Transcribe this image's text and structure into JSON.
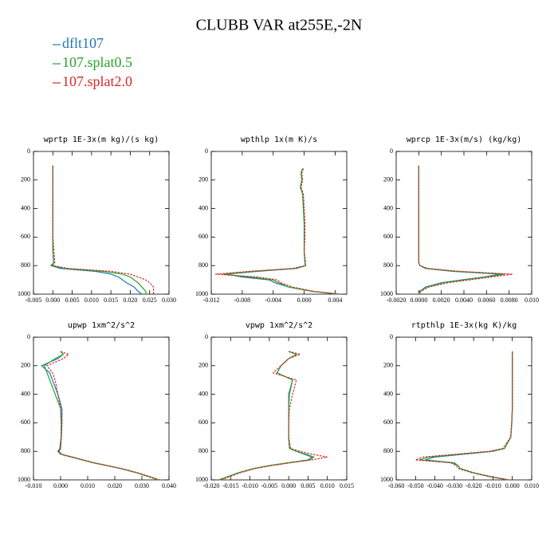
{
  "title": "CLUBB VAR at255E,-2N",
  "legend": [
    {
      "name": "dflt107",
      "color": "#1f77b4",
      "dash": false
    },
    {
      "name": "107.splat0.5",
      "color": "#2ca02c",
      "dash": false
    },
    {
      "name": "107.splat2.0",
      "color": "#d62728",
      "dash": true
    }
  ],
  "chart_data": [
    {
      "type": "line",
      "title": "wprtp  1E-3x(m kg)/(s kg)",
      "y": [
        100,
        150,
        200,
        250,
        300,
        400,
        500,
        600,
        700,
        780,
        800,
        820,
        840,
        860,
        880,
        900,
        920,
        950,
        980,
        1000
      ],
      "xlim": [
        -0.005,
        0.03
      ],
      "ylim": [
        0,
        1000
      ],
      "y_inverted": true,
      "xticks": [
        {
          "value": -0.005,
          "label": "-0.005"
        },
        {
          "value": 0,
          "label": "0.000"
        },
        {
          "value": 0.005,
          "label": "0.005"
        },
        {
          "value": 0.01,
          "label": "0.010"
        },
        {
          "value": 0.015,
          "label": "0.015"
        },
        {
          "value": 0.02,
          "label": "0.020"
        },
        {
          "value": 0.025,
          "label": "0.025"
        },
        {
          "value": 0.03,
          "label": "0.030"
        }
      ],
      "yticks": [
        0,
        200,
        400,
        600,
        800,
        1000
      ],
      "series": [
        {
          "values": [
            0,
            0,
            0,
            0,
            0,
            0,
            0,
            0,
            0,
            0.0002,
            -0.0005,
            0.002,
            0.011,
            0.015,
            0.017,
            0.018,
            0.019,
            0.021,
            0.022,
            0.023
          ]
        },
        {
          "values": [
            0,
            0,
            0,
            0,
            0,
            0,
            0,
            0,
            0,
            0.0002,
            -0.0003,
            0.003,
            0.013,
            0.018,
            0.02,
            0.021,
            0.022,
            0.023,
            0.024,
            0.024
          ]
        },
        {
          "values": [
            0,
            0,
            0,
            0,
            0,
            0,
            0,
            0,
            0.0003,
            0.0005,
            0,
            0.004,
            0.015,
            0.02,
            0.022,
            0.024,
            0.025,
            0.026,
            0.026,
            0.026
          ]
        }
      ]
    },
    {
      "type": "line",
      "title": "wpthlp  1x(m K)/s",
      "y": [
        120,
        150,
        200,
        250,
        300,
        400,
        500,
        600,
        700,
        780,
        800,
        820,
        840,
        860,
        880,
        900,
        920,
        950,
        980,
        1000
      ],
      "xlim": [
        -0.012,
        0.0055
      ],
      "ylim": [
        0,
        1000
      ],
      "y_inverted": true,
      "xticks": [
        {
          "value": -0.012,
          "label": "-0.012"
        },
        {
          "value": -0.008,
          "label": "-0.008"
        },
        {
          "value": -0.004,
          "label": "-0.004"
        },
        {
          "value": 0,
          "label": "0.000"
        },
        {
          "value": 0.004,
          "label": "0.004"
        }
      ],
      "yticks": [
        0,
        200,
        400,
        600,
        800,
        1000
      ],
      "series": [
        {
          "values": [
            -0.0002,
            -0.0004,
            -0.0003,
            -0.0005,
            -0.0002,
            -0.0001,
            0,
            0,
            0,
            0.0001,
            0.0002,
            -0.001,
            -0.006,
            -0.01,
            -0.008,
            -0.0045,
            -0.0038,
            -0.002,
            0.001,
            0.0045
          ]
        },
        {
          "values": [
            -0.0002,
            -0.0004,
            -0.0003,
            -0.0005,
            -0.0002,
            -0.0001,
            0,
            0,
            0,
            0.0001,
            0.0002,
            -0.0012,
            -0.0065,
            -0.0105,
            -0.007,
            -0.004,
            -0.0033,
            -0.002,
            0.001,
            0.0045
          ]
        },
        {
          "values": [
            -0.0001,
            -0.0003,
            -0.0002,
            -0.0004,
            -0.0001,
            0,
            0.0001,
            0.0001,
            0,
            0.0002,
            0.0001,
            -0.0015,
            -0.007,
            -0.0115,
            -0.006,
            -0.0035,
            -0.003,
            -0.0015,
            0.0012,
            0.0046
          ]
        }
      ]
    },
    {
      "type": "line",
      "title": "wprcp  1E-3x(m/s) (kg/kg)",
      "y": [
        100,
        150,
        200,
        250,
        300,
        400,
        500,
        600,
        700,
        780,
        800,
        820,
        840,
        860,
        880,
        900,
        920,
        950,
        980,
        1000
      ],
      "xlim": [
        -0.002,
        0.01
      ],
      "ylim": [
        0,
        1000
      ],
      "y_inverted": true,
      "xticks": [
        {
          "value": -0.002,
          "label": "-0.0020"
        },
        {
          "value": 0,
          "label": "0.0000"
        },
        {
          "value": 0.002,
          "label": "0.0020"
        },
        {
          "value": 0.004,
          "label": "0.0040"
        },
        {
          "value": 0.006,
          "label": "0.0060"
        },
        {
          "value": 0.008,
          "label": "0.0080"
        },
        {
          "value": 0.01,
          "label": "0.010"
        }
      ],
      "yticks": [
        0,
        200,
        400,
        600,
        800,
        1000
      ],
      "series": [
        {
          "values": [
            0,
            0,
            0,
            0,
            0,
            0,
            0,
            0,
            0,
            0,
            0.0001,
            0.0006,
            0.003,
            0.0072,
            0.0058,
            0.0038,
            0.002,
            0.0006,
            0.0001,
            0
          ]
        },
        {
          "values": [
            0,
            0,
            0,
            0,
            0,
            0,
            0,
            0,
            0,
            0,
            0.0001,
            0.0007,
            0.0032,
            0.0076,
            0.006,
            0.004,
            0.0022,
            0.0007,
            0.0001,
            0
          ]
        },
        {
          "values": [
            0,
            0,
            0,
            0,
            0,
            0,
            0,
            0,
            0,
            0,
            0.0001,
            0.0008,
            0.0036,
            0.0083,
            0.0064,
            0.0045,
            0.0026,
            0.0009,
            0.0002,
            0
          ]
        }
      ]
    },
    {
      "type": "line",
      "title": "upwp  1xm^2/s^2",
      "y": [
        100,
        120,
        150,
        200,
        250,
        300,
        400,
        500,
        600,
        700,
        780,
        800,
        820,
        840,
        860,
        880,
        900,
        920,
        950,
        980,
        1000
      ],
      "xlim": [
        -0.01,
        0.04
      ],
      "ylim": [
        0,
        1000
      ],
      "y_inverted": true,
      "xticks": [
        {
          "value": -0.01,
          "label": "-0.010"
        },
        {
          "value": 0,
          "label": "0.000"
        },
        {
          "value": 0.01,
          "label": "0.010"
        },
        {
          "value": 0.02,
          "label": "0.020"
        },
        {
          "value": 0.03,
          "label": "0.030"
        },
        {
          "value": 0.04,
          "label": "0.040"
        }
      ],
      "yticks": [
        0,
        200,
        400,
        600,
        800,
        1000
      ],
      "series": [
        {
          "values": [
            0,
            0.001,
            -0.001,
            -0.007,
            -0.004,
            -0.003,
            -0.001,
            0.0005,
            0.0005,
            0.0003,
            0,
            -0.0005,
            0,
            0.004,
            0.008,
            0.012,
            0.017,
            0.022,
            0.028,
            0.033,
            0.036
          ]
        },
        {
          "values": [
            0,
            0.001,
            -0.002,
            -0.006,
            -0.005,
            -0.004,
            -0.002,
            0,
            0.0003,
            0.0002,
            -0.0003,
            -0.001,
            0,
            0.004,
            0.008,
            0.012,
            0.017,
            0.022,
            0.028,
            0.033,
            0.036
          ]
        },
        {
          "values": [
            0,
            0.003,
            0.001,
            -0.005,
            -0.003,
            -0.002,
            -0.001,
            0,
            0.0002,
            0.0002,
            -0.0002,
            -0.0008,
            0.0005,
            0.0045,
            0.0085,
            0.0125,
            0.0175,
            0.0225,
            0.0285,
            0.0335,
            0.0365
          ]
        }
      ]
    },
    {
      "type": "line",
      "title": "vpwp  1xm^2/s^2",
      "y": [
        100,
        120,
        150,
        200,
        250,
        300,
        400,
        500,
        600,
        700,
        780,
        800,
        820,
        840,
        860,
        880,
        900,
        920,
        950,
        980,
        1000
      ],
      "xlim": [
        -0.02,
        0.015
      ],
      "ylim": [
        0,
        1000
      ],
      "y_inverted": true,
      "xticks": [
        {
          "value": -0.02,
          "label": "-0.020"
        },
        {
          "value": -0.015,
          "label": "-0.015"
        },
        {
          "value": -0.01,
          "label": "-0.010"
        },
        {
          "value": -0.005,
          "label": "-0.005"
        },
        {
          "value": 0,
          "label": "0.000"
        },
        {
          "value": 0.005,
          "label": "0.005"
        },
        {
          "value": 0.01,
          "label": "0.010"
        },
        {
          "value": 0.015,
          "label": "0.015"
        }
      ],
      "yticks": [
        0,
        200,
        400,
        600,
        800,
        1000
      ],
      "series": [
        {
          "values": [
            0,
            0.002,
            0,
            -0.002,
            -0.003,
            0.001,
            0,
            0,
            0,
            0,
            0.0002,
            0.002,
            0.004,
            0.006,
            0.005,
            0,
            -0.005,
            -0.009,
            -0.013,
            -0.016,
            -0.018
          ]
        },
        {
          "values": [
            0,
            0.002,
            0,
            -0.002,
            -0.003,
            0.001,
            0.0002,
            0,
            0,
            0,
            0.0002,
            0.002,
            0.0045,
            0.0065,
            0.0055,
            0,
            -0.005,
            -0.009,
            -0.013,
            -0.016,
            -0.018
          ]
        },
        {
          "values": [
            0,
            0.003,
            0,
            -0.002,
            -0.004,
            0.002,
            0.001,
            0.0002,
            0,
            0,
            0.0005,
            0.003,
            0.006,
            0.01,
            0.006,
            0.0005,
            -0.0045,
            -0.0085,
            -0.0125,
            -0.0155,
            -0.0175
          ]
        }
      ]
    },
    {
      "type": "line",
      "title": "rtpthlp  1E-3x(kg K)/kg",
      "y": [
        100,
        150,
        200,
        250,
        300,
        400,
        500,
        600,
        700,
        780,
        800,
        820,
        840,
        860,
        880,
        900,
        920,
        950,
        980,
        1000
      ],
      "xlim": [
        -0.06,
        0.01
      ],
      "ylim": [
        0,
        1000
      ],
      "y_inverted": true,
      "xticks": [
        {
          "value": -0.06,
          "label": "-0.060"
        },
        {
          "value": -0.05,
          "label": "-0.050"
        },
        {
          "value": -0.04,
          "label": "-0.040"
        },
        {
          "value": -0.03,
          "label": "-0.030"
        },
        {
          "value": -0.02,
          "label": "-0.020"
        },
        {
          "value": -0.01,
          "label": "-0.010"
        },
        {
          "value": 0,
          "label": "0.000"
        },
        {
          "value": 0.01,
          "label": "0.010"
        }
      ],
      "yticks": [
        0,
        200,
        400,
        600,
        800,
        1000
      ],
      "series": [
        {
          "values": [
            0,
            0,
            0,
            0,
            0,
            0,
            0,
            -0.0003,
            -0.0008,
            -0.004,
            -0.01,
            -0.025,
            -0.04,
            -0.045,
            -0.03,
            -0.028,
            -0.027,
            -0.02,
            -0.01,
            -0.002
          ]
        },
        {
          "values": [
            0,
            0,
            0,
            0,
            0,
            0,
            0,
            -0.0003,
            -0.0008,
            -0.004,
            -0.011,
            -0.027,
            -0.043,
            -0.048,
            -0.031,
            -0.028,
            -0.027,
            -0.02,
            -0.01,
            -0.002
          ]
        },
        {
          "values": [
            0,
            0,
            0,
            0,
            0,
            0,
            0,
            -0.0003,
            -0.0008,
            -0.005,
            -0.012,
            -0.029,
            -0.046,
            -0.05,
            -0.032,
            -0.029,
            -0.028,
            -0.021,
            -0.011,
            -0.002
          ]
        }
      ]
    }
  ]
}
